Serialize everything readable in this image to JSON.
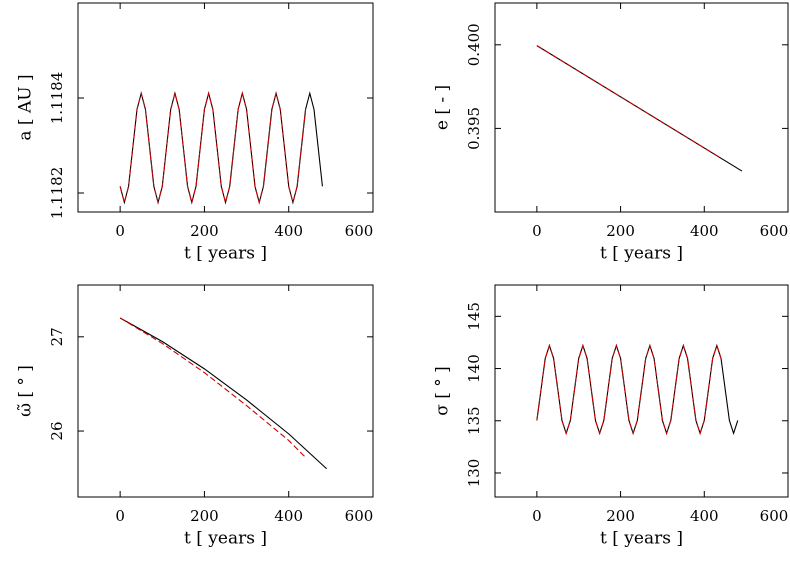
{
  "chart_data": [
    {
      "type": "line",
      "xlabel": "t [ years ]",
      "ylabel": "a [ AU ]",
      "xlim": [
        -100,
        600
      ],
      "xticks": [
        0,
        200,
        400,
        600
      ],
      "ylim": [
        1.11816,
        1.1186
      ],
      "yticks": [
        1.1182,
        1.1184
      ],
      "series": [
        {
          "color": "#000000",
          "dashed": false,
          "x": [
            0,
            10,
            20,
            30,
            40,
            50,
            60,
            70,
            80,
            90,
            100,
            110,
            120,
            130,
            140,
            150,
            160,
            170,
            180,
            190,
            200,
            210,
            220,
            230,
            240,
            250,
            260,
            270,
            280,
            290,
            300,
            310,
            320,
            330,
            340,
            350,
            360,
            370,
            380,
            390,
            400,
            410,
            420,
            430,
            440,
            450,
            460,
            470,
            480
          ],
          "values": [
            1.118214,
            1.11818,
            1.118214,
            1.118295,
            1.118376,
            1.11841,
            1.118376,
            1.118295,
            1.118214,
            1.11818,
            1.118214,
            1.118295,
            1.118376,
            1.11841,
            1.118376,
            1.118295,
            1.118214,
            1.11818,
            1.118214,
            1.118295,
            1.118376,
            1.11841,
            1.118376,
            1.118295,
            1.118214,
            1.11818,
            1.118214,
            1.118295,
            1.118376,
            1.11841,
            1.118376,
            1.118295,
            1.118214,
            1.11818,
            1.118214,
            1.118295,
            1.118376,
            1.11841,
            1.118376,
            1.118295,
            1.118214,
            1.11818,
            1.118214,
            1.118295,
            1.118376,
            1.11841,
            1.118376,
            1.118295,
            1.118214
          ]
        },
        {
          "color": "#cc0000",
          "dashed": true,
          "x": [
            0,
            10,
            20,
            30,
            40,
            50,
            60,
            70,
            80,
            90,
            100,
            110,
            120,
            130,
            140,
            150,
            160,
            170,
            180,
            190,
            200,
            210,
            220,
            230,
            240,
            250,
            260,
            270,
            280,
            290,
            300,
            310,
            320,
            330,
            340,
            350,
            360,
            370,
            380,
            390,
            400,
            410,
            420,
            430,
            440
          ],
          "values": [
            1.118214,
            1.11818,
            1.118214,
            1.118295,
            1.118376,
            1.11841,
            1.118376,
            1.118295,
            1.118214,
            1.11818,
            1.118214,
            1.118295,
            1.118376,
            1.11841,
            1.118376,
            1.118295,
            1.118214,
            1.11818,
            1.118214,
            1.118295,
            1.118376,
            1.11841,
            1.118376,
            1.118295,
            1.118214,
            1.11818,
            1.118214,
            1.118295,
            1.118376,
            1.11841,
            1.118376,
            1.118295,
            1.118214,
            1.11818,
            1.118214,
            1.118295,
            1.118376,
            1.11841,
            1.118376,
            1.118295,
            1.118214,
            1.11818,
            1.118214,
            1.118295,
            1.118376
          ]
        }
      ]
    },
    {
      "type": "line",
      "xlabel": "t [ years ]",
      "ylabel": "e [ - ]",
      "xlim": [
        -100,
        600
      ],
      "xticks": [
        0,
        200,
        400,
        600
      ],
      "ylim": [
        0.39,
        0.4025
      ],
      "yticks": [
        0.395,
        {
          "value": 0.4,
          "label": "0.400"
        }
      ],
      "series": [
        {
          "color": "#000000",
          "dashed": false,
          "x": [
            0,
            490
          ],
          "values": [
            0.39995,
            0.39245
          ]
        },
        {
          "color": "#cc0000",
          "dashed": true,
          "x": [
            0,
            440
          ],
          "values": [
            0.39995,
            0.39322
          ]
        }
      ]
    },
    {
      "type": "line",
      "xlabel": "t [ years ]",
      "ylabel": "ω̃ [ ° ]",
      "xlim": [
        -100,
        600
      ],
      "xticks": [
        0,
        200,
        400,
        600
      ],
      "ylim": [
        25.3,
        27.55
      ],
      "yticks": [
        26,
        27
      ],
      "series": [
        {
          "color": "#000000",
          "dashed": false,
          "x": [
            0,
            100,
            200,
            300,
            400,
            490
          ],
          "values": [
            27.2,
            26.95,
            26.66,
            26.33,
            25.97,
            25.6
          ]
        },
        {
          "color": "#cc0000",
          "dashed": true,
          "x": [
            0,
            100,
            200,
            300,
            400,
            440
          ],
          "values": [
            27.2,
            26.93,
            26.62,
            26.27,
            25.9,
            25.72
          ]
        }
      ]
    },
    {
      "type": "line",
      "xlabel": "t [ years ]",
      "ylabel": "σ [ ° ]",
      "xlim": [
        -100,
        600
      ],
      "xticks": [
        0,
        200,
        400,
        600
      ],
      "ylim": [
        127.7,
        148
      ],
      "yticks": [
        130,
        135,
        140,
        145
      ],
      "series": [
        {
          "color": "#000000",
          "dashed": false,
          "x": [
            0,
            10,
            20,
            30,
            40,
            50,
            60,
            70,
            80,
            90,
            100,
            110,
            120,
            130,
            140,
            150,
            160,
            170,
            180,
            190,
            200,
            210,
            220,
            230,
            240,
            250,
            260,
            270,
            280,
            290,
            300,
            310,
            320,
            330,
            340,
            350,
            360,
            370,
            380,
            390,
            400,
            410,
            420,
            430,
            440,
            450,
            460,
            470,
            480
          ],
          "values": [
            135.03,
            138,
            140.97,
            142.2,
            140.97,
            138,
            135.03,
            133.8,
            135.03,
            138,
            140.97,
            142.2,
            140.97,
            138,
            135.03,
            133.8,
            135.03,
            138,
            140.97,
            142.2,
            140.97,
            138,
            135.03,
            133.8,
            135.03,
            138,
            140.97,
            142.2,
            140.97,
            138,
            135.03,
            133.8,
            135.03,
            138,
            140.97,
            142.2,
            140.97,
            138,
            135.03,
            133.8,
            135.03,
            138,
            140.97,
            142.2,
            140.97,
            138,
            135.03,
            133.8,
            135.03
          ]
        },
        {
          "color": "#cc0000",
          "dashed": true,
          "x": [
            0,
            10,
            20,
            30,
            40,
            50,
            60,
            70,
            80,
            90,
            100,
            110,
            120,
            130,
            140,
            150,
            160,
            170,
            180,
            190,
            200,
            210,
            220,
            230,
            240,
            250,
            260,
            270,
            280,
            290,
            300,
            310,
            320,
            330,
            340,
            350,
            360,
            370,
            380,
            390,
            400,
            410,
            420,
            430,
            440
          ],
          "values": [
            135.03,
            138,
            140.97,
            142.2,
            140.97,
            138,
            135.03,
            133.8,
            135.03,
            138,
            140.97,
            142.2,
            140.97,
            138,
            135.03,
            133.8,
            135.03,
            138,
            140.97,
            142.2,
            140.97,
            138,
            135.03,
            133.8,
            135.03,
            138,
            140.97,
            142.2,
            140.97,
            138,
            135.03,
            133.8,
            135.03,
            138,
            140.97,
            142.2,
            140.97,
            138,
            135.03,
            133.8,
            135.03,
            138,
            140.97,
            142.2,
            140.97
          ]
        }
      ]
    }
  ]
}
